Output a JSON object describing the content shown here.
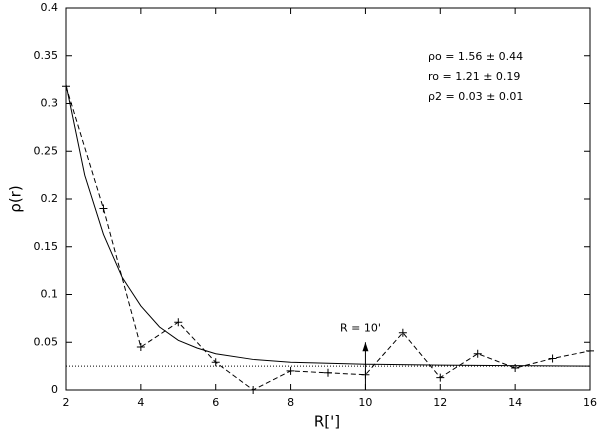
{
  "chart_data": {
    "type": "line",
    "xlabel": "R[']",
    "ylabel": "ρ(r)",
    "xlim": [
      2,
      16
    ],
    "ylim": [
      0,
      0.4
    ],
    "xticks": [
      2,
      4,
      6,
      8,
      10,
      12,
      14,
      16
    ],
    "yticks": [
      0,
      0.05,
      0.1,
      0.15,
      0.2,
      0.25,
      0.3,
      0.35,
      0.4
    ],
    "series": [
      {
        "style": "dashed",
        "markers": true,
        "color": "#000000",
        "x": [
          2,
          3,
          4,
          5,
          6,
          7,
          8,
          9,
          10,
          11,
          12,
          13,
          14,
          15,
          16
        ],
        "values": [
          0.318,
          0.19,
          0.045,
          0.071,
          0.029,
          0.0,
          0.02,
          0.018,
          0.016,
          0.06,
          0.013,
          0.038,
          0.023,
          0.033,
          0.041
        ]
      },
      {
        "style": "solid",
        "markers": false,
        "color": "#000000",
        "x": [
          2,
          2.5,
          3,
          3.5,
          4,
          4.5,
          5,
          5.5,
          6,
          7,
          8,
          9,
          10,
          12,
          14,
          16
        ],
        "values": [
          0.32,
          0.225,
          0.163,
          0.118,
          0.088,
          0.066,
          0.052,
          0.044,
          0.038,
          0.032,
          0.029,
          0.028,
          0.027,
          0.026,
          0.0255,
          0.025
        ]
      },
      {
        "style": "dotted",
        "markers": false,
        "color": "#000000",
        "x": [
          2,
          16
        ],
        "values": [
          0.025,
          0.025
        ]
      }
    ],
    "annotations": [
      {
        "text": "ρo = 1.56 ± 0.44"
      },
      {
        "text": "ro = 1.21 ± 0.19"
      },
      {
        "text": "ρ2 = 0.03 ± 0.01"
      }
    ],
    "arrow": {
      "text": "R = 10'",
      "x": 10,
      "y": [
        0,
        0.05
      ]
    }
  }
}
